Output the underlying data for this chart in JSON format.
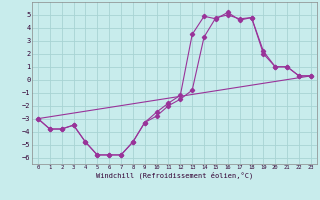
{
  "xlabel": "Windchill (Refroidissement éolien,°C)",
  "bg_color": "#c8ecec",
  "grid_color": "#a8d4d4",
  "line_color": "#993399",
  "xlim": [
    -0.5,
    23.5
  ],
  "ylim": [
    -6.5,
    6.0
  ],
  "yticks": [
    -6,
    -5,
    -4,
    -3,
    -2,
    -1,
    0,
    1,
    2,
    3,
    4,
    5
  ],
  "xticks": [
    0,
    1,
    2,
    3,
    4,
    5,
    6,
    7,
    8,
    9,
    10,
    11,
    12,
    13,
    14,
    15,
    16,
    17,
    18,
    19,
    20,
    21,
    22,
    23
  ],
  "line1_x": [
    0,
    1,
    2,
    3,
    4,
    5,
    6,
    7,
    8,
    9,
    10,
    11,
    12,
    13,
    14,
    15,
    16,
    17,
    18,
    19,
    20,
    21,
    22,
    23
  ],
  "line1_y": [
    -3.0,
    -3.8,
    -3.8,
    -3.5,
    -4.8,
    -5.8,
    -5.8,
    -5.8,
    -4.8,
    -3.3,
    -2.5,
    -1.8,
    -1.2,
    3.5,
    4.9,
    4.7,
    5.2,
    4.6,
    4.8,
    2.2,
    1.0,
    1.0,
    0.3,
    0.3
  ],
  "line2_x": [
    0,
    1,
    2,
    3,
    4,
    5,
    6,
    7,
    8,
    9,
    10,
    11,
    12,
    13,
    14,
    15,
    16,
    17,
    18,
    19,
    20,
    21,
    22,
    23
  ],
  "line2_y": [
    -3.0,
    -3.8,
    -3.8,
    -3.5,
    -4.8,
    -5.8,
    -5.8,
    -5.8,
    -4.8,
    -3.3,
    -2.8,
    -2.0,
    -1.5,
    -0.8,
    3.3,
    4.8,
    5.0,
    4.7,
    4.8,
    2.0,
    1.0,
    1.0,
    0.3,
    0.3
  ],
  "line3_x": [
    0,
    23
  ],
  "line3_y": [
    -3.0,
    0.3
  ]
}
